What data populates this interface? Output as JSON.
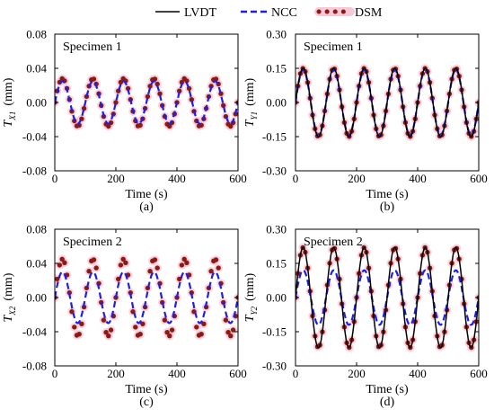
{
  "legend": {
    "entries": [
      {
        "label": "LVDT",
        "color": "#000000",
        "style": "solid"
      },
      {
        "label": "NCC",
        "color": "#1f1fe0",
        "style": "dashed"
      },
      {
        "label": "DSM",
        "color": "#8b1a12",
        "style": "dotted",
        "halo": "#f4b3c8"
      }
    ]
  },
  "chart_data": [
    {
      "type": "line",
      "panel_label": "(a)",
      "title": "Specimen 1",
      "xlabel": "Time (s)",
      "ylabel_main": "T",
      "ylabel_sub": "X1",
      "ylabel_unit": "(mm)",
      "xlim": [
        0,
        600
      ],
      "ylim": [
        -0.08,
        0.08
      ],
      "xticks": [
        "0",
        "200",
        "400",
        "600"
      ],
      "yticks": [
        "-0.08",
        "-0.04",
        "0.00",
        "0.04",
        "0.08"
      ],
      "period_s": 100,
      "x_end": 600,
      "series": [
        {
          "name": "NCC",
          "amplitude": 0.025
        },
        {
          "name": "DSM",
          "amplitude": 0.028
        }
      ]
    },
    {
      "type": "line",
      "panel_label": "(b)",
      "title": "Specimen 1",
      "xlabel": "Time (s)",
      "ylabel_main": "T",
      "ylabel_sub": "Y1",
      "ylabel_unit": "(mm)",
      "xlim": [
        0,
        600
      ],
      "ylim": [
        -0.3,
        0.3
      ],
      "xticks": [
        "0",
        "200",
        "400",
        "600"
      ],
      "yticks": [
        "-0.30",
        "-0.15",
        "0.00",
        "0.15",
        "0.30"
      ],
      "period_s": 100,
      "x_end": 600,
      "series": [
        {
          "name": "LVDT",
          "amplitude": 0.15
        },
        {
          "name": "NCC",
          "amplitude": 0.145
        },
        {
          "name": "DSM",
          "amplitude": 0.15
        }
      ]
    },
    {
      "type": "line",
      "panel_label": "(c)",
      "title": "Specimen 2",
      "xlabel": "Time (s)",
      "ylabel_main": "T",
      "ylabel_sub": "X2",
      "ylabel_unit": "(mm)",
      "xlim": [
        0,
        600
      ],
      "ylim": [
        -0.08,
        0.08
      ],
      "xticks": [
        "0",
        "200",
        "400",
        "600"
      ],
      "yticks": [
        "-0.08",
        "-0.04",
        "0.00",
        "0.04",
        "0.08"
      ],
      "period_s": 100,
      "x_end": 600,
      "series": [
        {
          "name": "NCC",
          "amplitude": 0.03
        },
        {
          "name": "DSM",
          "amplitude": 0.045
        }
      ]
    },
    {
      "type": "line",
      "panel_label": "(d)",
      "title": "Specimen 2",
      "xlabel": "Time (s)",
      "ylabel_main": "T",
      "ylabel_sub": "Y2",
      "ylabel_unit": "(mm)",
      "xlim": [
        0,
        600
      ],
      "ylim": [
        -0.3,
        0.3
      ],
      "xticks": [
        "0",
        "200",
        "400",
        "600"
      ],
      "yticks": [
        "-0.30",
        "-0.15",
        "0.00",
        "0.15",
        "0.30"
      ],
      "period_s": 100,
      "x_end": 600,
      "series": [
        {
          "name": "LVDT",
          "amplitude": 0.22
        },
        {
          "name": "NCC",
          "amplitude": 0.12
        },
        {
          "name": "DSM",
          "amplitude": 0.22
        }
      ]
    }
  ]
}
